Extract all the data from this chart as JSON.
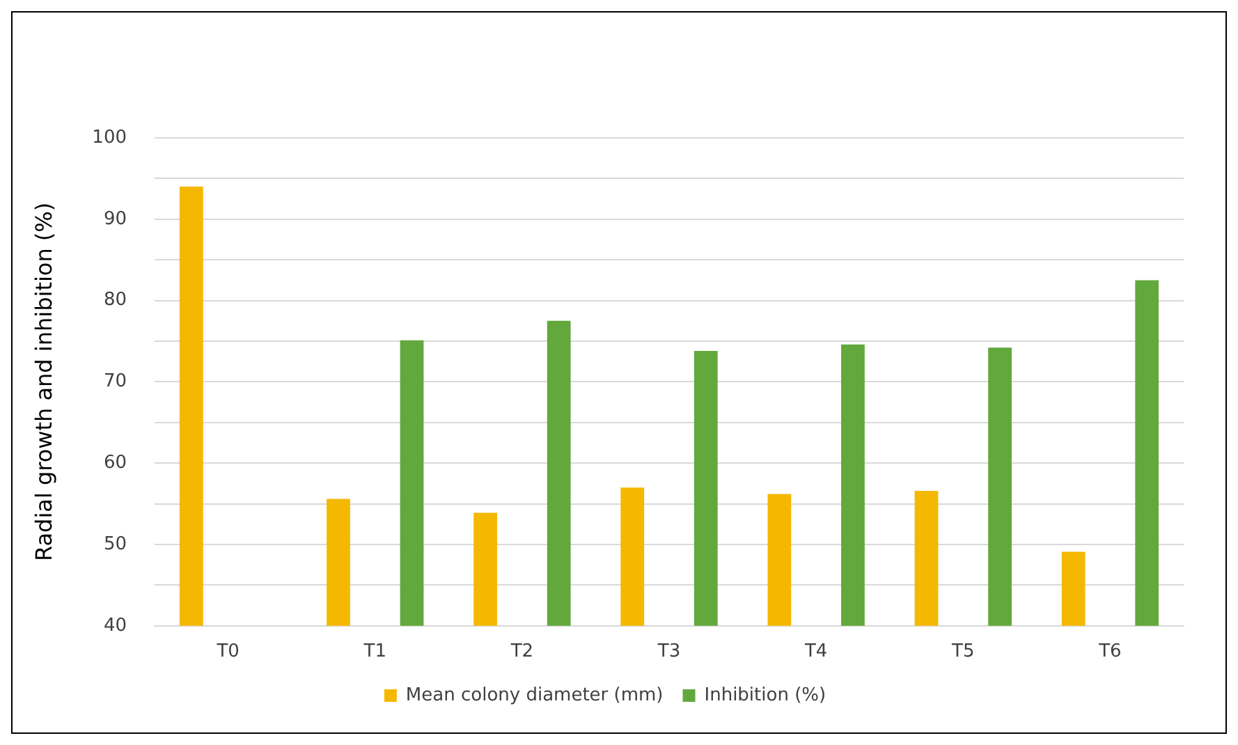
{
  "chart_data": {
    "type": "bar",
    "ylabel": "Radial growth and inhibition (%)",
    "categories": [
      "T0",
      "T1",
      "T2",
      "T3",
      "T4",
      "T5",
      "T6"
    ],
    "series": [
      {
        "name": "Mean colony diameter (mm)",
        "color": "#f5b800",
        "values": [
          94,
          55.6,
          53.9,
          57,
          56.2,
          56.6,
          49.1
        ]
      },
      {
        "name": "Inhibition (%)",
        "color": "#62a83c",
        "values": [
          null,
          75.1,
          77.5,
          73.8,
          74.6,
          74.2,
          82.5
        ]
      }
    ],
    "ylim": [
      40,
      100
    ],
    "yticks": [
      40,
      {
        "value": 45,
        "label": null
      },
      50,
      {
        "value": 55,
        "label": null
      },
      60,
      {
        "value": 65,
        "label": null
      },
      70,
      {
        "value": 75,
        "label": null
      },
      80,
      {
        "value": 85,
        "label": null
      },
      90,
      {
        "value": 95,
        "label": null
      },
      100
    ],
    "grid": "y",
    "legend": "bottom"
  }
}
